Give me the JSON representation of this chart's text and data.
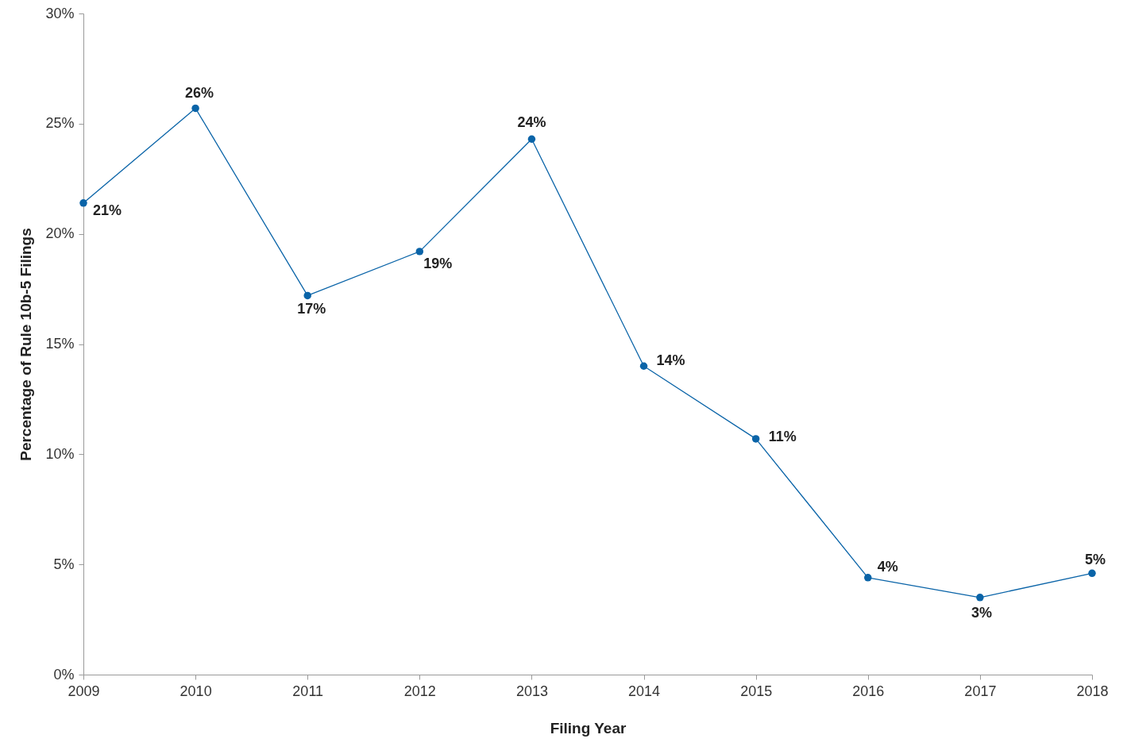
{
  "chart_data": {
    "type": "line",
    "xlabel": "Filing Year",
    "ylabel": "Percentage of Rule 10b-5 Filings",
    "x": [
      2009,
      2010,
      2011,
      2012,
      2013,
      2014,
      2015,
      2016,
      2017,
      2018
    ],
    "series": [
      {
        "color": "#0a64a8",
        "values": [
          21.4,
          25.7,
          17.2,
          19.2,
          24.3,
          14.0,
          10.7,
          4.4,
          3.5,
          4.6
        ],
        "value_labels": [
          "21%",
          "26%",
          "17%",
          "19%",
          "24%",
          "14%",
          "11%",
          "4%",
          "3%",
          "5%"
        ]
      }
    ],
    "xlim": [
      2009,
      2018
    ],
    "xticks": [
      2009,
      2010,
      2011,
      2012,
      2013,
      2014,
      2015,
      2016,
      2017,
      2018
    ],
    "ylim": [
      0,
      30
    ],
    "yticks": [
      {
        "value": 0,
        "label": "0%"
      },
      {
        "value": 5,
        "label": "5%"
      },
      {
        "value": 10,
        "label": "10%"
      },
      {
        "value": 15,
        "label": "15%"
      },
      {
        "value": 20,
        "label": "20%"
      },
      {
        "value": 25,
        "label": "25%"
      },
      {
        "value": 30,
        "label": "30%"
      }
    ],
    "marker": "circle",
    "grid": false
  }
}
